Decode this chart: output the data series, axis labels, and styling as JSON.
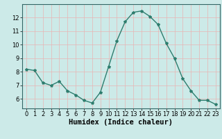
{
  "x": [
    0,
    1,
    2,
    3,
    4,
    5,
    6,
    7,
    8,
    9,
    10,
    11,
    12,
    13,
    14,
    15,
    16,
    17,
    18,
    19,
    20,
    21,
    22,
    23
  ],
  "y": [
    8.2,
    8.1,
    7.2,
    7.0,
    7.3,
    6.6,
    6.3,
    5.9,
    5.7,
    6.5,
    8.4,
    10.3,
    11.7,
    12.4,
    12.5,
    12.1,
    11.5,
    10.1,
    9.0,
    7.5,
    6.6,
    5.9,
    5.9,
    5.6
  ],
  "line_color": "#2e7d6e",
  "marker": "*",
  "marker_size": 3,
  "bg_color": "#cceae8",
  "grid_color": "#e8b4b4",
  "xlabel": "Humidex (Indice chaleur)",
  "xlim": [
    -0.5,
    23.5
  ],
  "ylim": [
    5.3,
    13.0
  ],
  "yticks": [
    6,
    7,
    8,
    9,
    10,
    11,
    12
  ],
  "xticks": [
    0,
    1,
    2,
    3,
    4,
    5,
    6,
    7,
    8,
    9,
    10,
    11,
    12,
    13,
    14,
    15,
    16,
    17,
    18,
    19,
    20,
    21,
    22,
    23
  ],
  "tick_fontsize": 6,
  "xlabel_fontsize": 7.5,
  "linewidth": 1.0
}
